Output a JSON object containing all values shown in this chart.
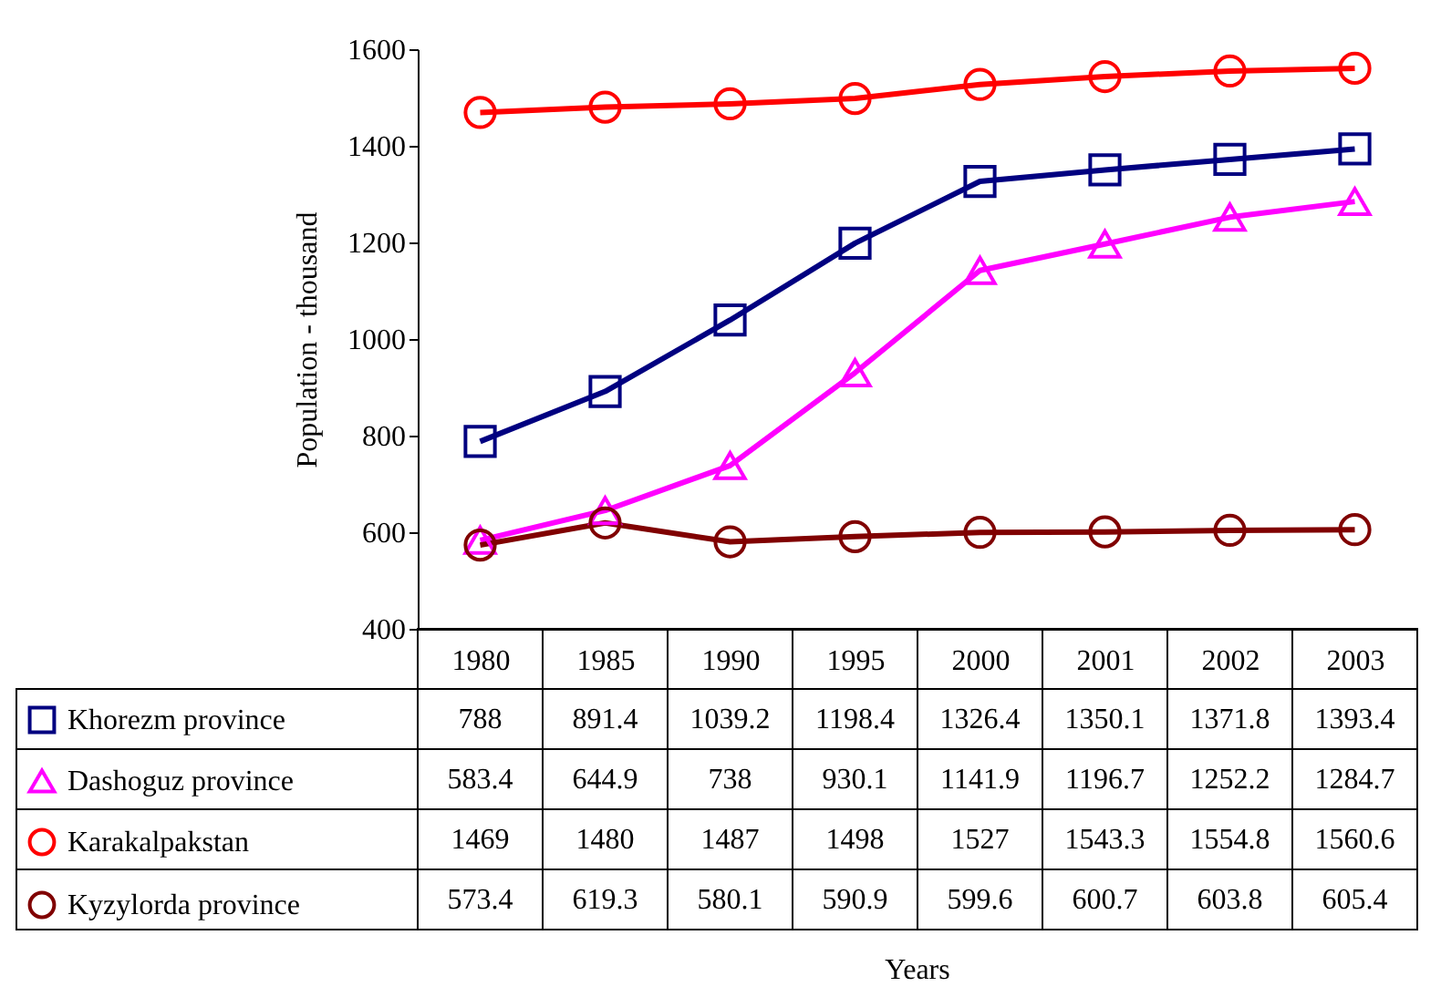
{
  "chart_data": {
    "type": "line",
    "annotations": [
      "Years"
    ],
    "ylabel": "Population - thousand",
    "categories": [
      "1980",
      "1985",
      "1990",
      "1995",
      "2000",
      "2001",
      "2002",
      "2003"
    ],
    "series": [
      {
        "name": "Khorezm province",
        "color": "#000080",
        "marker": "square",
        "values": [
          788,
          891.4,
          1039.2,
          1198.4,
          1326.4,
          1350.1,
          1371.8,
          1393.4
        ]
      },
      {
        "name": "Dashoguz province",
        "color": "#ff00ff",
        "marker": "triangle",
        "values": [
          583.4,
          644.9,
          738,
          930.1,
          1141.9,
          1196.7,
          1252.2,
          1284.7
        ]
      },
      {
        "name": "Karakalpakstan",
        "color": "#ff0000",
        "marker": "circle",
        "values": [
          1469,
          1480,
          1487,
          1498,
          1527,
          1543.3,
          1554.8,
          1560.6
        ]
      },
      {
        "name": "Kyzylorda province",
        "color": "#800000",
        "marker": "circle",
        "values": [
          573.4,
          619.3,
          580.1,
          590.9,
          599.6,
          600.7,
          603.8,
          605.4
        ]
      }
    ],
    "ylim": [
      400,
      1600
    ],
    "yticks": [
      400,
      600,
      800,
      1000,
      1200,
      1400,
      1600
    ],
    "grid": false,
    "legend": "bottom left",
    "data_labels": true,
    "line_style": "solid"
  }
}
